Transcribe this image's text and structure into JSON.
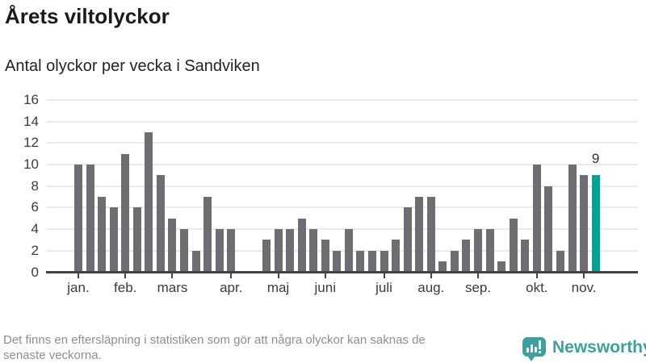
{
  "header": {
    "title": "Årets viltolyckor",
    "subtitle": "Antal olyckor per vecka i Sandviken"
  },
  "chart_data": {
    "type": "bar",
    "x_unit": "vecka (week of year)",
    "values": [
      10,
      10,
      7,
      6,
      11,
      6,
      13,
      9,
      5,
      4,
      2,
      7,
      4,
      4,
      0,
      0,
      3,
      4,
      4,
      5,
      4,
      3,
      2,
      4,
      2,
      2,
      2,
      3,
      6,
      7,
      7,
      1,
      2,
      3,
      4,
      4,
      1,
      5,
      3,
      10,
      8,
      2,
      10,
      9,
      9
    ],
    "highlight_week": 45,
    "highlight_label": "9",
    "y_ticks": [
      0,
      2,
      4,
      6,
      8,
      10,
      12,
      14,
      16
    ],
    "ylim": [
      0,
      16
    ],
    "grid": true,
    "month_ticks": [
      {
        "label": "jan.",
        "week": 1
      },
      {
        "label": "feb.",
        "week": 5
      },
      {
        "label": "mars",
        "week": 9
      },
      {
        "label": "apr.",
        "week": 14
      },
      {
        "label": "maj",
        "week": 18
      },
      {
        "label": "juni",
        "week": 22
      },
      {
        "label": "juli",
        "week": 27
      },
      {
        "label": "aug.",
        "week": 31
      },
      {
        "label": "sep.",
        "week": 35
      },
      {
        "label": "okt.",
        "week": 40
      },
      {
        "label": "nov.",
        "week": 44
      }
    ],
    "bar_color": "#6d6d72",
    "highlight_color": "#00a29a"
  },
  "footer": {
    "note_lines": [
      "Det finns en eftersläpning i statistiken som gör att några olyckor kan saknas de",
      "senaste veckorna."
    ],
    "logo_text": "Newsworthy",
    "logo_color": "#3da09d"
  }
}
